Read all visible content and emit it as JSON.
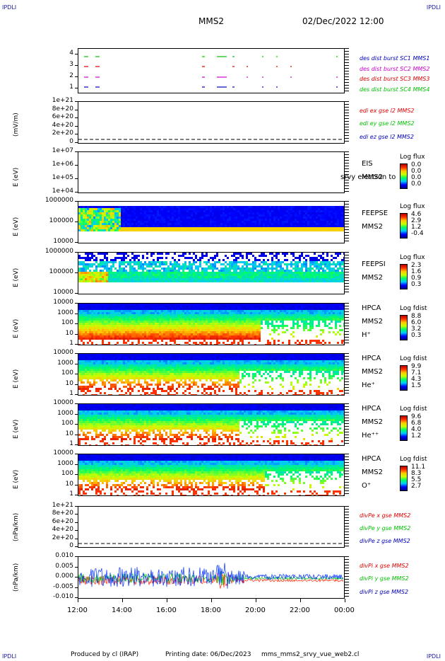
{
  "corners": {
    "top_left": "IPDLI",
    "top_right": "IPDLI",
    "bottom_left": "IPDLI",
    "bottom_right": "IPDLI"
  },
  "header": {
    "spacecraft": "MMS2",
    "datetime": "02/Dec/2022 12:00"
  },
  "footer": {
    "produced": "Produced by cl (IRAP)",
    "printing": "Printing date: 06/Dec/2023",
    "script": "mms_mms2_srvy_vue_web2.cl"
  },
  "colors": {
    "red": "#e00000",
    "green": "#00c000",
    "blue": "#0000c0",
    "magenta": "#d000d0",
    "line_blue": "#0030ff",
    "line_red": "#ff2000",
    "line_green": "#00c800"
  },
  "chart_data": [
    {
      "type": "scatter",
      "id": "burst",
      "yticks": [
        "4",
        "3",
        "2",
        "1"
      ],
      "legend": [
        "des dist burst SC1 MMS1",
        "des dist burst SC2 MMS2",
        "des dist burst SC3 MMS3",
        "des dist burst SC4 MMS4"
      ]
    },
    {
      "type": "line",
      "id": "edi",
      "ylabel": "(mV/m)",
      "yticks": [
        "1e+21",
        "8e+20",
        "6e+20",
        "4e+20",
        "2e+20",
        "0"
      ],
      "legend": [
        "edi ex gse l2 MMS2",
        "edi ey gse l2 MMS2",
        "edi ez gse l2 MMS2"
      ]
    },
    {
      "type": "heatmap",
      "id": "eis",
      "ylabel": "E (eV)",
      "yticks": [
        "1e+07",
        "1e+06",
        "1e+05",
        "1e+04"
      ],
      "instrument": [
        "EIS",
        "MMS2"
      ],
      "overlay": "srvy electron to",
      "cbar_title": "Log flux",
      "cbar_vals": [
        "0.0",
        "0.0",
        "0.0",
        "0.0"
      ]
    },
    {
      "type": "heatmap",
      "id": "feepse",
      "ylabel": "E (eV)",
      "yticks": [
        "1000000",
        "100000",
        "10000"
      ],
      "instrument": [
        "FEEPSE",
        "MMS2"
      ],
      "cbar_title": "Log flux",
      "cbar_vals": [
        "4.6",
        "2.9",
        "1.2",
        "-0.4"
      ]
    },
    {
      "type": "heatmap",
      "id": "feepsi",
      "ylabel": "E (eV)",
      "yticks": [
        "1000000",
        "100000",
        "10000"
      ],
      "instrument": [
        "FEEPSI",
        "MMS2"
      ],
      "cbar_title": "Log flux",
      "cbar_vals": [
        "2.3",
        "1.6",
        "0.9",
        "0.3"
      ]
    },
    {
      "type": "heatmap",
      "id": "hpca_h",
      "ylabel": "E (eV)",
      "yticks": [
        "10000",
        "1000",
        "100",
        "10",
        "1"
      ],
      "instrument": [
        "HPCA",
        "MMS2",
        "H⁺"
      ],
      "cbar_title": "Log fdist",
      "cbar_vals": [
        "8.8",
        "6.0",
        "3.2",
        "0.3"
      ]
    },
    {
      "type": "heatmap",
      "id": "hpca_he",
      "ylabel": "E (eV)",
      "yticks": [
        "10000",
        "1000",
        "100",
        "10",
        "1"
      ],
      "instrument": [
        "HPCA",
        "MMS2",
        "He⁺"
      ],
      "cbar_title": "Log fdist",
      "cbar_vals": [
        "9.9",
        "7.1",
        "4.3",
        "1.5"
      ]
    },
    {
      "type": "heatmap",
      "id": "hpca_hepp",
      "ylabel": "E (eV)",
      "yticks": [
        "10000",
        "1000",
        "100",
        "10",
        "1"
      ],
      "instrument": [
        "HPCA",
        "MMS2",
        "He⁺⁺"
      ],
      "cbar_title": "Log fdist",
      "cbar_vals": [
        "9.6",
        "6.8",
        "4.0",
        "1.2"
      ]
    },
    {
      "type": "heatmap",
      "id": "hpca_o",
      "ylabel": "E (eV)",
      "yticks": [
        "10000",
        "1000",
        "100",
        "10",
        "1"
      ],
      "instrument": [
        "HPCA",
        "MMS2",
        "O⁺"
      ],
      "cbar_title": "Log fdist",
      "cbar_vals": [
        "11.1",
        "8.3",
        "5.5",
        "2.7"
      ]
    },
    {
      "type": "line",
      "id": "divpe",
      "ylabel": "(nPa/km)",
      "yticks": [
        "1e+21",
        "8e+20",
        "6e+20",
        "4e+20",
        "2e+20",
        "0"
      ],
      "legend": [
        "divPe x gse MMS2",
        "divPe y gse MMS2",
        "divPe z gse MMS2"
      ]
    },
    {
      "type": "line",
      "id": "divpi",
      "ylabel": "(nPa/km)",
      "yticks": [
        "0.010",
        "0.005",
        "0.000",
        "-0.005",
        "-0.010"
      ],
      "legend": [
        "divPi x gse MMS2",
        "divPi y gse MMS2",
        "divPi z gse MMS2"
      ]
    }
  ],
  "xaxis": {
    "ticks": [
      "12:00",
      "14:00",
      "16:00",
      "18:00",
      "20:00",
      "22:00",
      "00:00"
    ]
  }
}
